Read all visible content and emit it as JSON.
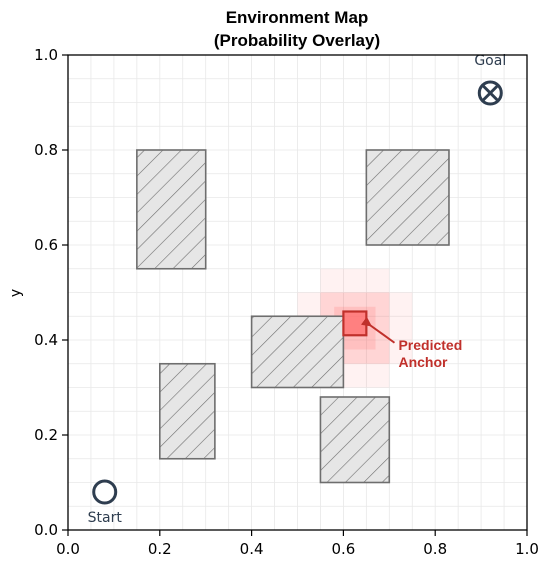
{
  "chart_data": {
    "type": "scatter",
    "title": "Environment Map",
    "subtitle": "(Probability Overlay)",
    "xlabel": "",
    "ylabel": "y",
    "xlim": [
      0.0,
      1.0
    ],
    "ylim": [
      0.0,
      1.0
    ],
    "xticks": [
      "0.0",
      "0.2",
      "0.4",
      "0.6",
      "0.8",
      "1.0"
    ],
    "yticks": [
      "0.0",
      "0.2",
      "0.4",
      "0.6",
      "0.8",
      "1.0"
    ],
    "grid": true,
    "grid_minor_step": 0.05,
    "obstacles": [
      {
        "x0": 0.15,
        "x1": 0.3,
        "y0": 0.55,
        "y1": 0.8
      },
      {
        "x0": 0.65,
        "x1": 0.83,
        "y0": 0.6,
        "y1": 0.8
      },
      {
        "x0": 0.4,
        "x1": 0.6,
        "y0": 0.3,
        "y1": 0.45
      },
      {
        "x0": 0.2,
        "x1": 0.32,
        "y0": 0.15,
        "y1": 0.35
      },
      {
        "x0": 0.55,
        "x1": 0.7,
        "y0": 0.1,
        "y1": 0.28
      }
    ],
    "probability_overlay": [
      {
        "x0": 0.55,
        "x1": 0.7,
        "y0": 0.3,
        "y1": 0.55,
        "alpha": 0.07
      },
      {
        "x0": 0.5,
        "x1": 0.75,
        "y0": 0.35,
        "y1": 0.5,
        "alpha": 0.07
      },
      {
        "x0": 0.55,
        "x1": 0.7,
        "y0": 0.35,
        "y1": 0.5,
        "alpha": 0.1
      },
      {
        "x0": 0.58,
        "x1": 0.67,
        "y0": 0.38,
        "y1": 0.47,
        "alpha": 0.15
      }
    ],
    "predicted_anchor": {
      "x0": 0.6,
      "x1": 0.65,
      "y0": 0.41,
      "y1": 0.46,
      "label_line1": "Predicted",
      "label_line2": "Anchor",
      "label_x": 0.72,
      "label_y": 0.39
    },
    "start": {
      "x": 0.08,
      "y": 0.08,
      "label": "Start"
    },
    "goal": {
      "x": 0.92,
      "y": 0.92,
      "label": "Goal"
    },
    "colors": {
      "obstacle_fill": "#e6e6e6",
      "obstacle_edge": "#6e6e6e",
      "overlay": "#ff4d4d",
      "anchor": "#c0302b",
      "marker": "#2e3d4f",
      "grid": "#e8e8e8"
    }
  }
}
